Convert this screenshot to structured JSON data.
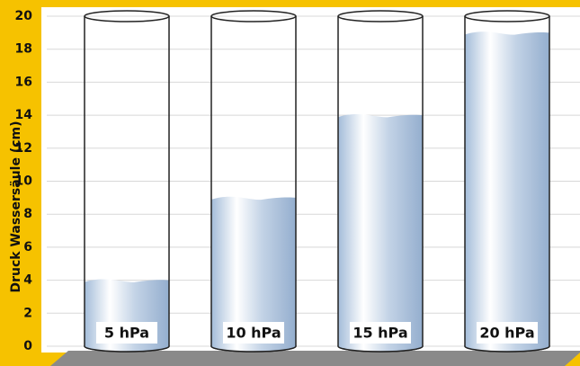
{
  "chart_data": {
    "type": "cylinder-bar",
    "y_label": "Druck Wassersäule (cm)",
    "categories": [
      "5 hPa",
      "10 hPa",
      "15 hPa",
      "20 hPa"
    ],
    "values": [
      4,
      9,
      14,
      19
    ],
    "color": "#9ab3d2",
    "ylim": [
      0,
      20
    ],
    "yticks": [
      0,
      2,
      4,
      6,
      8,
      10,
      12,
      14,
      16,
      18,
      20
    ],
    "grid": true
  }
}
